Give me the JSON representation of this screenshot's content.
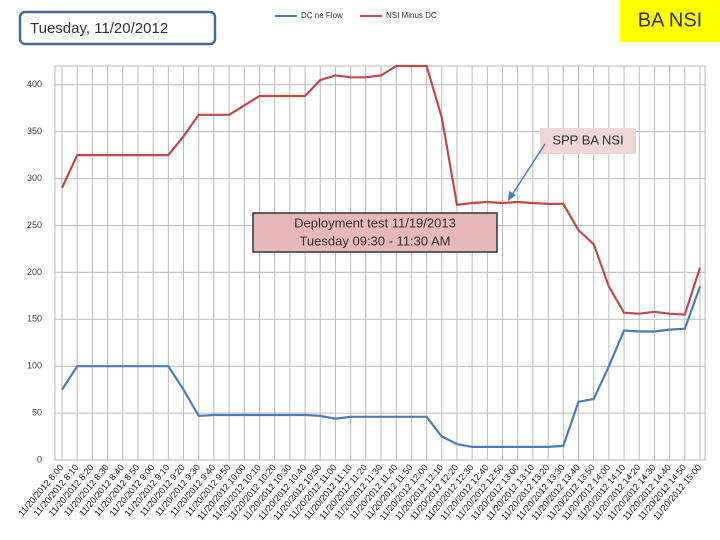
{
  "chart_data": {
    "type": "line",
    "categories": [
      "11/20/2012 8:00",
      "11/20/2012 8:10",
      "11/20/2012 8:20",
      "11/20/2012 8:30",
      "11/20/2012 8:40",
      "11/20/2012 8:50",
      "11/20/2012 9:00",
      "11/20/2012 9:10",
      "11/20/2012 9:20",
      "11/20/2012 9:30",
      "11/20/2012 9:40",
      "11/20/2012 9:50",
      "11/20/2012 10:00",
      "11/20/2012 10:10",
      "11/20/2012 10:20",
      "11/20/2012 10:30",
      "11/20/2012 10:40",
      "11/20/2012 10:50",
      "11/20/2012 11:00",
      "11/20/2012 11:10",
      "11/20/2012 11:20",
      "11/20/2012 11:30",
      "11/20/2012 11:40",
      "11/20/2012 11:50",
      "11/20/2012 12:00",
      "11/20/2012 12:10",
      "11/20/2012 12:20",
      "11/20/2012 12:30",
      "11/20/2012 12:40",
      "11/20/2012 12:50",
      "11/20/2012 13:00",
      "11/20/2012 13:10",
      "11/20/2012 13:20",
      "11/20/2012 13:30",
      "11/20/2012 13:40",
      "11/20/2012 13:50",
      "11/20/2012 14:00",
      "11/20/2012 14:10",
      "11/20/2012 14:20",
      "11/20/2012 14:30",
      "11/20/2012 14:40",
      "11/20/2012 14:50",
      "11/20/2012 15:00"
    ],
    "series": [
      {
        "name": "DC  ne Flow",
        "color": "#4a7ebb",
        "values": [
          75,
          100,
          100,
          100,
          100,
          100,
          100,
          100,
          75,
          47,
          48,
          48,
          48,
          48,
          48,
          48,
          48,
          47,
          44,
          46,
          46,
          46,
          46,
          46,
          46,
          25,
          17,
          14,
          14,
          14,
          14,
          14,
          14,
          15,
          62,
          65,
          100,
          138,
          137,
          137,
          139,
          140,
          185
        ]
      },
      {
        "name": "NSI  Minus  DC",
        "color": "#be4b48",
        "values": [
          290,
          325,
          325,
          325,
          325,
          325,
          325,
          325,
          345,
          368,
          368,
          368,
          378,
          388,
          388,
          388,
          388,
          405,
          410,
          408,
          408,
          410,
          420,
          420,
          420,
          365,
          272,
          274,
          275,
          274,
          275,
          274,
          273,
          273,
          245,
          230,
          185,
          157,
          156,
          158,
          156,
          155,
          205
        ]
      }
    ],
    "ylim": [
      0,
      420
    ],
    "yticks": [
      0,
      50,
      100,
      150,
      200,
      250,
      300,
      350,
      400
    ],
    "grid": true,
    "annotations": {
      "date": "Tuesday, 11/20/2012",
      "badge": "BA  NSI",
      "callout": "SPP BA NSI",
      "note": [
        "Deployment test   11/19/2013",
        "Tuesday   09:30  -  11:30  AM"
      ]
    }
  }
}
